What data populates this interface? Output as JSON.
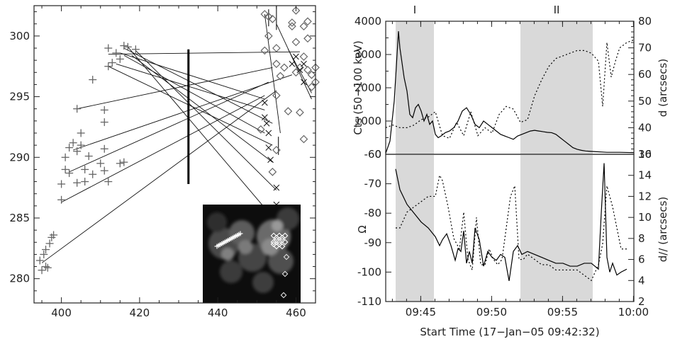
{
  "charts": {
    "left": {
      "type": "scatter",
      "xlim": [
        393,
        465
      ],
      "ylim": [
        278,
        302.5
      ],
      "xticks": [
        "400",
        "420",
        "440",
        "460"
      ],
      "yticks": [
        "280",
        "285",
        "290",
        "295",
        "300"
      ],
      "plus_points": [
        [
          394.5,
          281.5
        ],
        [
          395,
          280.7
        ],
        [
          395.5,
          282
        ],
        [
          396,
          281
        ],
        [
          396,
          282.4
        ],
        [
          397,
          282.9
        ],
        [
          397.5,
          283.4
        ],
        [
          398,
          283.6
        ],
        [
          396.5,
          280.9
        ],
        [
          400,
          286.5
        ],
        [
          400,
          287.8
        ],
        [
          401,
          289
        ],
        [
          401,
          290
        ],
        [
          402,
          288.7
        ],
        [
          402,
          290.8
        ],
        [
          403,
          291.2
        ],
        [
          404,
          290.5
        ],
        [
          404,
          287.9
        ],
        [
          404,
          294
        ],
        [
          405,
          292
        ],
        [
          405,
          291
        ],
        [
          406,
          288
        ],
        [
          406,
          289
        ],
        [
          407,
          290.1
        ],
        [
          408,
          288.6
        ],
        [
          408,
          296.4
        ],
        [
          410,
          289.5
        ],
        [
          411,
          288.9
        ],
        [
          411,
          293.9
        ],
        [
          411,
          292.9
        ],
        [
          411,
          290.7
        ],
        [
          412,
          288
        ],
        [
          412,
          299
        ],
        [
          412,
          297.5
        ],
        [
          413,
          297.8
        ],
        [
          414,
          298.6
        ],
        [
          415,
          298.1
        ],
        [
          415,
          289.5
        ],
        [
          416,
          289.6
        ],
        [
          416,
          299.2
        ],
        [
          417,
          299.1
        ],
        [
          419,
          298.9
        ]
      ],
      "diamond_points": [
        [
          451,
          292.3
        ],
        [
          452,
          301.8
        ],
        [
          452,
          298.8
        ],
        [
          453,
          300
        ],
        [
          454,
          301.4
        ],
        [
          455,
          299
        ],
        [
          455,
          297.7
        ],
        [
          455,
          295.1
        ],
        [
          456,
          296.7
        ],
        [
          457,
          297.4
        ],
        [
          459,
          301.1
        ],
        [
          459,
          300.8
        ],
        [
          460,
          299.5
        ],
        [
          460,
          297
        ],
        [
          461,
          297.4
        ],
        [
          461,
          293.7
        ],
        [
          462,
          291.5
        ],
        [
          462,
          300.8
        ],
        [
          463,
          299.8
        ],
        [
          463,
          301.2
        ],
        [
          463,
          297.2
        ],
        [
          464,
          296.8
        ],
        [
          464,
          295.8
        ],
        [
          465,
          297.4
        ],
        [
          465,
          296.2
        ],
        [
          458,
          293.8
        ],
        [
          454,
          288.8
        ],
        [
          453,
          301.6
        ],
        [
          460,
          302.1
        ],
        [
          455,
          290.6
        ],
        [
          455,
          285.5
        ],
        [
          462,
          298.3
        ]
      ],
      "lines": [
        [
          [
            395,
            281.3
          ],
          [
            455,
            295.5
          ]
        ],
        [
          [
            400,
            286.3
          ],
          [
            452,
            295.1
          ]
        ],
        [
          [
            402,
            288.8
          ],
          [
            453,
            296.2
          ]
        ],
        [
          [
            403,
            290.6
          ],
          [
            459,
            296.8
          ]
        ],
        [
          [
            404,
            294
          ],
          [
            454,
            297.4
          ]
        ],
        [
          [
            412,
            298.5
          ],
          [
            461,
            298.7
          ]
        ],
        [
          [
            415,
            298.6
          ],
          [
            452,
            294.8
          ]
        ],
        [
          [
            416,
            299
          ],
          [
            454,
            292.8
          ]
        ],
        [
          [
            414,
            297.7
          ],
          [
            452,
            293.9
          ]
        ],
        [
          [
            416,
            298.4
          ],
          [
            452,
            292
          ]
        ],
        [
          [
            419,
            298.8
          ],
          [
            455,
            287.3
          ]
        ],
        [
          [
            418,
            298.4
          ],
          [
            454,
            289.6
          ]
        ],
        [
          [
            417,
            299.1
          ],
          [
            455,
            284.7
          ]
        ],
        [
          [
            412,
            297.5
          ],
          [
            454,
            291
          ]
        ],
        [
          [
            452,
            301.8
          ],
          [
            456,
            292
          ]
        ],
        [
          [
            455,
            301
          ],
          [
            464,
            294.8
          ]
        ],
        [
          [
            458,
            298.9
          ],
          [
            464,
            295.3
          ]
        ]
      ],
      "bold_line": {
        "x": 432.5,
        "y": [
          287.8,
          298.9
        ]
      },
      "vertical_bars": [
        [
          455,
          300.5,
          302.5
        ],
        [
          453,
          300.8,
          302.2
        ],
        [
          455.5,
          290.2,
          291.7
        ]
      ],
      "x_markers": [
        [
          452,
          294.5
        ],
        [
          452,
          293.3
        ],
        [
          452.5,
          292.8
        ],
        [
          453,
          292
        ],
        [
          453,
          290.8
        ],
        [
          453.5,
          289.8
        ],
        [
          455,
          287.5
        ],
        [
          455,
          286.1
        ],
        [
          455,
          284.4
        ],
        [
          455.5,
          283.5
        ],
        [
          456,
          285.8
        ],
        [
          459,
          297.7
        ],
        [
          460,
          298.3
        ],
        [
          461,
          297.2
        ],
        [
          462,
          297.7
        ],
        [
          462,
          296.2
        ]
      ]
    },
    "right_top": {
      "type": "line",
      "xlim": [
        0,
        17.5
      ],
      "ylim": [
        0,
        4000
      ],
      "ylim_right": [
        30,
        80
      ],
      "yticks_left": [
        "0",
        "1000",
        "2000",
        "3000",
        "4000"
      ],
      "yticks_right": [
        "30",
        "40",
        "50",
        "60",
        "70",
        "80"
      ],
      "ylabel": "Cts (50−100 keV)",
      "ylabel_right": "d (arcsecs)",
      "shaded": [
        [
          0.7,
          3.4
        ],
        [
          9.5,
          14.6
        ]
      ],
      "interval_labels": [
        "I",
        "II"
      ],
      "series": [
        {
          "style": "solid",
          "x": [
            0,
            0.3,
            0.6,
            0.8,
            0.9,
            1,
            1.1,
            1.2,
            1.3,
            1.5,
            1.7,
            1.9,
            2.1,
            2.3,
            2.5,
            2.7,
            2.9,
            3.1,
            3.3,
            3.5,
            3.7,
            3.9,
            4.2,
            4.5,
            4.8,
            5.1,
            5.4,
            5.7,
            6,
            6.3,
            6.6,
            6.9,
            7.2,
            7.5,
            7.8,
            8.1,
            8.4,
            8.7,
            9,
            9.3,
            9.6,
            9.9,
            10.2,
            10.5,
            10.8,
            11.1,
            11.4,
            11.7,
            12,
            12.3,
            12.6,
            12.9,
            13.2,
            13.5,
            13.8,
            14.1,
            14.4,
            14.8,
            15.2,
            15.6,
            16,
            16.5,
            17,
            17.5
          ],
          "y": [
            30,
            400,
            1600,
            3000,
            3700,
            3200,
            2900,
            2600,
            2300,
            1900,
            1200,
            1100,
            1400,
            1500,
            1300,
            1000,
            1200,
            900,
            1000,
            600,
            500,
            550,
            650,
            700,
            800,
            1000,
            1300,
            1400,
            1200,
            900,
            800,
            1000,
            900,
            800,
            700,
            600,
            550,
            500,
            450,
            550,
            600,
            650,
            700,
            720,
            700,
            680,
            660,
            650,
            600,
            500,
            400,
            300,
            200,
            150,
            120,
            100,
            90,
            80,
            70,
            60,
            60,
            60,
            55,
            50
          ]
        },
        {
          "style": "dotted",
          "x": [
            0,
            0.5,
            1,
            1.5,
            2,
            2.5,
            3,
            3.5,
            4,
            4.5,
            5,
            5.5,
            6,
            6.5,
            7,
            7.5,
            8,
            8.5,
            9,
            9.5,
            10,
            10.5,
            11,
            11.5,
            12,
            12.5,
            13,
            13.5,
            14,
            14.5,
            15,
            15.3,
            15.6,
            15.9,
            16.2,
            16.5,
            17,
            17.5
          ],
          "y": [
            40,
            41,
            40,
            40,
            41,
            43,
            44,
            46,
            37,
            36,
            42,
            37,
            46,
            37,
            40,
            38,
            45,
            48,
            47,
            42,
            43,
            52,
            58,
            63,
            66,
            67,
            68,
            69,
            69,
            68,
            65,
            48,
            72,
            59,
            65,
            70,
            72,
            73
          ]
        }
      ]
    },
    "right_bottom": {
      "type": "line",
      "xlim": [
        0,
        17.5
      ],
      "ylim": [
        -110,
        -60
      ],
      "ylim_right": [
        2,
        16
      ],
      "yticks_left": [
        "-110",
        "-100",
        "-90",
        "-80",
        "-70",
        "-60"
      ],
      "yticks_right": [
        "2",
        "4",
        "6",
        "8",
        "10",
        "12",
        "14",
        "16"
      ],
      "xticks": [
        "09:45",
        "09:50",
        "09:55",
        "10:00"
      ],
      "ylabel": "Ω",
      "ylabel_right": "d// (arcsecs)",
      "xlabel": "Start Time (17−Jan−05 09:42:32)",
      "shaded": [
        [
          0.7,
          3.4
        ],
        [
          9.5,
          14.6
        ]
      ],
      "series": [
        {
          "style": "solid",
          "x": [
            0.7,
            1,
            1.5,
            2,
            2.5,
            3,
            3.5,
            3.8,
            4,
            4.3,
            4.6,
            4.9,
            5.1,
            5.3,
            5.5,
            5.7,
            5.9,
            6.1,
            6.3,
            6.6,
            6.9,
            7.2,
            7.5,
            7.8,
            8.1,
            8.4,
            8.7,
            9,
            9.3,
            9.6,
            10,
            10.5,
            11,
            11.5,
            12,
            12.5,
            13,
            13.5,
            14,
            14.5,
            15,
            15.2,
            15.4,
            15.6,
            15.8,
            16,
            16.3,
            16.6,
            17
          ],
          "y": [
            -65,
            -72,
            -77,
            -80,
            -83,
            -85,
            -88,
            -91,
            -89,
            -87,
            -91,
            -96,
            -92,
            -93,
            -86,
            -97,
            -93,
            -97,
            -85,
            -89,
            -98,
            -93,
            -95,
            -96,
            -94,
            -95,
            -103,
            -93,
            -91,
            -94,
            -93,
            -94,
            -95,
            -96,
            -97,
            -97,
            -98,
            -98,
            -97,
            -97,
            -99,
            -80,
            -63,
            -95,
            -100,
            -97,
            -101,
            -100,
            -99
          ]
        },
        {
          "style": "dotted",
          "x": [
            0.7,
            1,
            1.5,
            2,
            2.5,
            3,
            3.5,
            3.8,
            4,
            4.4,
            4.8,
            5.2,
            5.5,
            5.8,
            6.1,
            6.4,
            6.7,
            7,
            7.3,
            7.6,
            7.9,
            8.2,
            8.5,
            8.8,
            9.1,
            9.4,
            9.7,
            10,
            10.5,
            11,
            11.5,
            12,
            12.5,
            13,
            13.5,
            14,
            14.5,
            15,
            15.3,
            15.6,
            16,
            16.3,
            16.6,
            17
          ],
          "y": [
            9,
            9,
            10.5,
            11,
            11.5,
            12,
            12,
            14,
            13.5,
            11,
            8,
            7,
            10.5,
            6,
            5,
            10,
            5.5,
            5.5,
            7,
            6,
            5.5,
            6,
            9,
            12,
            13,
            6,
            6,
            6.5,
            6,
            5.5,
            5.5,
            5,
            5,
            5,
            5,
            4.5,
            4,
            5.5,
            7.5,
            13,
            11,
            9,
            7,
            7
          ]
        }
      ]
    }
  }
}
